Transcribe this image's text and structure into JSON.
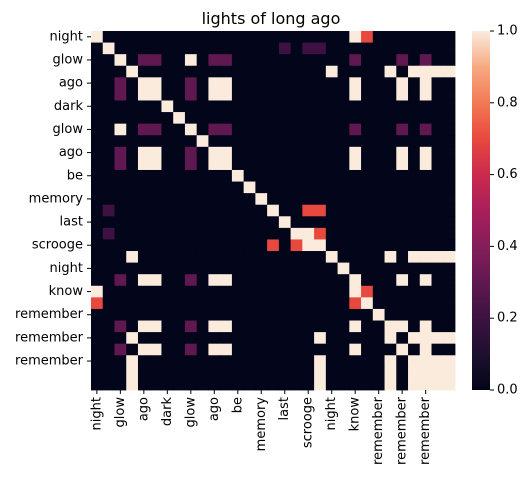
{
  "chart_data": {
    "type": "heatmap",
    "title": "lights of long ago",
    "x_labels": [
      "night",
      "glow",
      "ago",
      "dark",
      "glow",
      "ago",
      "be",
      "memory",
      "last",
      "scrooge",
      "night",
      "know",
      "remember",
      "remember",
      "remember"
    ],
    "y_labels": [
      "night",
      "glow",
      "ago",
      "dark",
      "glow",
      "ago",
      "be",
      "memory",
      "last",
      "scrooge",
      "night",
      "know",
      "remember",
      "remember",
      "remember"
    ],
    "tokens": [
      "night",
      "",
      "glow",
      "",
      "ago",
      "",
      "dark",
      "",
      "glow",
      "",
      "ago",
      "",
      "be",
      "",
      "memory",
      "",
      "last",
      "",
      "scrooge",
      "",
      "night",
      "",
      "know",
      "",
      "remember",
      "",
      "remember",
      "",
      "remember",
      "",
      ""
    ],
    "colorbar": {
      "min": 0.0,
      "max": 1.0,
      "ticks": [
        0.0,
        0.2,
        0.4,
        0.6,
        0.8,
        1.0
      ],
      "tick_labels": [
        "0.0",
        "0.2",
        "0.4",
        "0.6",
        "0.8",
        "1.0"
      ],
      "colormap": "rocket"
    },
    "values": [
      [
        1,
        0,
        0,
        0,
        0,
        0,
        0,
        0,
        0,
        0,
        0,
        0,
        0,
        0,
        0,
        0,
        0,
        0,
        0,
        0,
        0,
        0,
        1,
        0.7,
        0,
        0,
        0,
        0,
        0,
        0,
        0
      ],
      [
        0,
        1,
        0,
        0,
        0,
        0,
        0,
        0,
        0,
        0,
        0,
        0,
        0,
        0,
        0,
        0,
        0.2,
        0,
        0.2,
        0.2,
        0,
        0,
        0,
        0,
        0,
        0,
        0,
        0,
        0,
        0,
        0
      ],
      [
        0,
        0,
        1,
        0,
        0.3,
        0.3,
        0,
        0,
        1,
        0,
        0.3,
        0.3,
        0,
        0,
        0,
        0,
        0,
        0,
        0,
        0,
        0,
        0,
        0.3,
        0,
        0,
        0,
        0.3,
        0,
        0.3,
        0,
        0
      ],
      [
        0,
        0,
        0,
        1,
        0,
        0,
        0,
        0,
        0,
        0,
        0,
        0,
        0,
        0,
        0,
        0,
        0,
        0,
        0,
        0,
        1,
        0,
        0,
        0,
        0,
        1,
        0,
        1,
        1,
        1,
        1
      ],
      [
        0,
        0,
        0.3,
        0,
        1,
        1,
        0,
        0,
        0.3,
        0,
        1,
        1,
        0,
        0,
        0,
        0,
        0,
        0,
        0,
        0,
        0,
        0,
        1,
        0,
        0,
        0,
        1,
        0,
        1,
        0,
        0
      ],
      [
        0,
        0,
        0.3,
        0,
        1,
        1,
        0,
        0,
        0.3,
        0,
        1,
        1,
        0,
        0,
        0,
        0,
        0,
        0,
        0,
        0,
        0,
        0,
        1,
        0,
        0,
        0,
        1,
        0,
        1,
        0,
        0
      ],
      [
        0,
        0,
        0,
        0,
        0,
        0,
        1,
        0,
        0,
        0,
        0,
        0,
        0,
        0,
        0,
        0,
        0,
        0,
        0,
        0,
        0,
        0,
        0,
        0,
        0,
        0,
        0,
        0,
        0,
        0,
        0
      ],
      [
        0,
        0,
        0,
        0,
        0,
        0,
        0,
        1,
        0,
        0,
        0,
        0,
        0,
        0,
        0,
        0,
        0,
        0,
        0,
        0,
        0,
        0,
        0,
        0,
        0,
        0,
        0,
        0,
        0,
        0,
        0
      ],
      [
        0,
        0,
        1,
        0,
        0.3,
        0.3,
        0,
        0,
        1,
        0,
        0.3,
        0.3,
        0,
        0,
        0,
        0,
        0,
        0,
        0,
        0,
        0,
        0,
        0.3,
        0,
        0,
        0,
        0.3,
        0,
        0.3,
        0,
        0
      ],
      [
        0,
        0,
        0,
        0,
        0,
        0,
        0,
        0,
        0,
        1,
        0,
        0,
        0,
        0,
        0,
        0,
        0,
        0,
        0,
        0,
        0,
        0,
        0,
        0,
        0,
        0,
        0,
        0,
        0,
        0,
        0
      ],
      [
        0,
        0,
        0.3,
        0,
        1,
        1,
        0,
        0,
        0.3,
        0,
        1,
        1,
        0,
        0,
        0,
        0,
        0,
        0,
        0,
        0,
        0,
        0,
        1,
        0,
        0,
        0,
        1,
        0,
        1,
        0,
        0
      ],
      [
        0,
        0,
        0.3,
        0,
        1,
        1,
        0,
        0,
        0.3,
        0,
        1,
        1,
        0,
        0,
        0,
        0,
        0,
        0,
        0,
        0,
        0,
        0,
        1,
        0,
        0,
        0,
        1,
        0,
        1,
        0,
        0
      ],
      [
        0,
        0,
        0,
        0,
        0,
        0,
        0,
        0,
        0,
        0,
        0,
        0,
        1,
        0,
        0,
        0,
        0,
        0,
        0,
        0,
        0,
        0,
        0,
        0,
        0,
        0,
        0,
        0,
        0,
        0,
        0
      ],
      [
        0,
        0,
        0,
        0,
        0,
        0,
        0,
        0,
        0,
        0,
        0,
        0,
        0,
        1,
        0,
        0,
        0,
        0,
        0,
        0,
        0,
        0,
        0,
        0,
        0,
        0,
        0,
        0,
        0,
        0,
        0
      ],
      [
        0,
        0,
        0,
        0,
        0,
        0,
        0,
        0,
        0,
        0,
        0,
        0,
        0,
        0,
        1,
        0,
        0,
        0,
        0,
        0,
        0,
        0,
        0,
        0,
        0,
        0,
        0,
        0,
        0,
        0,
        0
      ],
      [
        0,
        0.2,
        0,
        0,
        0,
        0,
        0,
        0,
        0,
        0,
        0,
        0,
        0,
        0,
        0,
        1,
        0,
        0,
        0.7,
        0.7,
        0,
        0,
        0,
        0,
        0,
        0,
        0,
        0,
        0,
        0,
        0
      ],
      [
        0,
        0,
        0,
        0,
        0,
        0,
        0,
        0,
        0,
        0,
        0,
        0,
        0,
        0,
        0,
        0,
        1,
        0,
        0,
        0,
        0,
        0,
        0,
        0,
        0,
        0,
        0,
        0,
        0,
        0,
        0
      ],
      [
        0,
        0.2,
        0,
        0,
        0,
        0,
        0,
        0,
        0,
        0,
        0,
        0,
        0,
        0,
        0,
        0,
        0,
        1,
        1,
        0.7,
        0,
        0,
        0,
        0,
        0,
        0,
        0,
        0,
        0,
        0,
        0
      ],
      [
        0,
        0,
        0,
        0,
        0,
        0,
        0,
        0,
        0,
        0,
        0,
        0,
        0,
        0,
        0,
        0.7,
        0,
        0.7,
        1,
        1,
        0,
        0,
        0,
        0,
        0,
        0,
        0,
        0,
        0,
        0,
        0
      ],
      [
        0,
        0,
        0,
        1,
        0,
        0,
        0,
        0,
        0,
        0,
        0,
        0,
        0,
        0,
        0,
        0,
        0,
        0,
        0,
        0,
        1,
        0,
        0,
        0,
        0,
        1,
        0,
        1,
        1,
        1,
        1
      ],
      [
        0,
        0,
        0,
        0,
        0,
        0,
        0,
        0,
        0,
        0,
        0,
        0,
        0,
        0,
        0,
        0,
        0,
        0,
        0,
        0,
        0,
        1,
        0,
        0,
        0,
        0,
        0,
        0,
        0,
        0,
        0
      ],
      [
        0,
        0,
        0.3,
        0,
        1,
        1,
        0,
        0,
        0.3,
        0,
        1,
        1,
        0,
        0,
        0,
        0,
        0,
        0,
        0,
        0,
        0,
        0,
        1,
        0,
        0,
        0,
        1,
        0,
        1,
        0,
        0
      ],
      [
        1,
        0,
        0,
        0,
        0,
        0,
        0,
        0,
        0,
        0,
        0,
        0,
        0,
        0,
        0,
        0,
        0,
        0,
        0,
        0,
        0,
        0,
        1,
        0.7,
        0,
        0,
        0,
        0,
        0,
        0,
        0
      ],
      [
        0.7,
        0,
        0,
        0,
        0,
        0,
        0,
        0,
        0,
        0,
        0,
        0,
        0,
        0,
        0,
        0,
        0,
        0,
        0,
        0,
        0,
        0,
        0.7,
        1,
        0,
        0,
        0,
        0,
        0,
        0,
        0
      ],
      [
        0,
        0,
        0,
        0,
        0,
        0,
        0,
        0,
        0,
        0,
        0,
        0,
        0,
        0,
        0,
        0,
        0,
        0,
        0,
        0,
        0,
        0,
        0,
        0,
        1,
        0,
        0,
        0,
        0,
        0,
        0
      ],
      [
        0,
        0,
        0.3,
        0,
        1,
        1,
        0,
        0,
        0.3,
        0,
        1,
        1,
        0,
        0,
        0,
        0,
        0,
        0,
        0,
        0,
        0,
        0,
        1,
        0,
        0,
        1,
        1,
        0,
        1,
        0,
        0
      ],
      [
        0,
        0,
        0,
        1,
        0,
        0,
        0,
        0,
        0,
        0,
        0,
        0,
        0,
        0,
        0,
        0,
        0,
        0,
        0,
        1,
        0,
        0,
        0,
        0,
        0,
        1,
        0,
        1,
        1,
        1,
        1
      ],
      [
        0,
        0,
        0.3,
        0,
        1,
        1,
        0,
        0,
        0.3,
        0,
        1,
        1,
        0,
        0,
        0,
        0,
        0,
        0,
        0,
        0,
        0,
        0,
        1,
        0,
        0,
        0,
        1,
        0,
        1,
        0,
        0
      ],
      [
        0,
        0,
        0,
        1,
        0,
        0,
        0,
        0,
        0,
        0,
        0,
        0,
        0,
        0,
        0,
        0,
        0,
        0,
        0,
        1,
        0,
        0,
        0,
        0,
        0,
        1,
        0,
        1,
        1,
        1,
        1
      ],
      [
        0,
        0,
        0,
        1,
        0,
        0,
        0,
        0,
        0,
        0,
        0,
        0,
        0,
        0,
        0,
        0,
        0,
        0,
        0,
        1,
        0,
        0,
        0,
        0,
        0,
        1,
        0,
        1,
        1,
        1,
        1
      ],
      [
        0,
        0,
        0,
        1,
        0,
        0,
        0,
        0,
        0,
        0,
        0,
        0,
        0,
        0,
        0,
        0,
        0,
        0,
        0,
        1,
        0,
        0,
        0,
        0,
        0,
        1,
        0,
        1,
        1,
        1,
        1
      ]
    ]
  }
}
